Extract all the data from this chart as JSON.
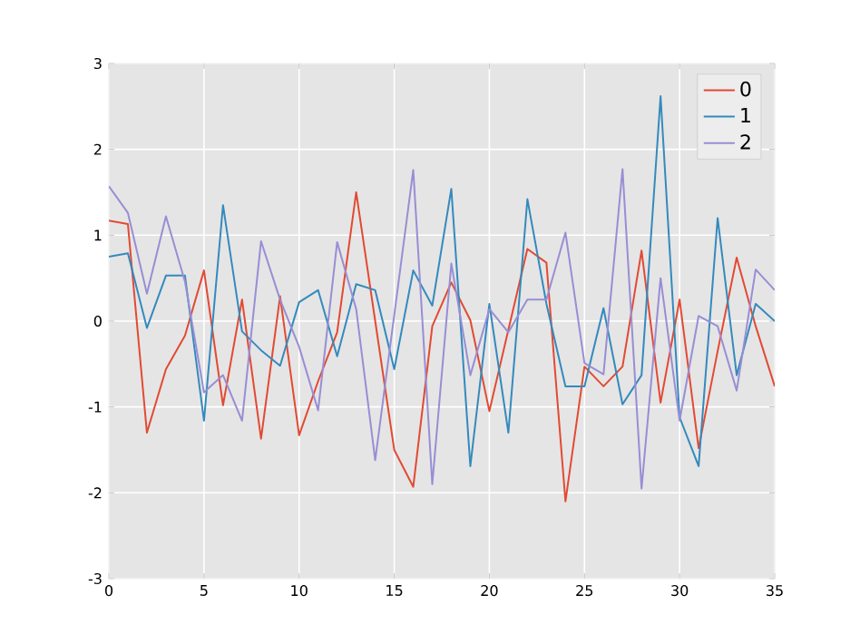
{
  "chart_data": {
    "type": "line",
    "x": [
      0,
      1,
      2,
      3,
      4,
      5,
      6,
      7,
      8,
      9,
      10,
      11,
      12,
      13,
      14,
      15,
      16,
      17,
      18,
      19,
      20,
      21,
      22,
      23,
      24,
      25,
      26,
      27,
      28,
      29,
      30,
      31,
      32,
      33,
      34,
      35
    ],
    "series": [
      {
        "name": "0",
        "color": "#e24a33",
        "values": [
          1.17,
          1.13,
          -1.3,
          -0.56,
          -0.17,
          0.59,
          -0.98,
          0.25,
          -1.37,
          0.29,
          -1.33,
          -0.7,
          -0.13,
          1.5,
          0.0,
          -1.5,
          -1.93,
          -0.06,
          0.45,
          0.01,
          -1.05,
          -0.1,
          0.84,
          0.68,
          -2.1,
          -0.53,
          -0.76,
          -0.53,
          0.82,
          -0.95,
          0.25,
          -1.48,
          -0.35,
          0.74,
          -0.06,
          -0.76
        ]
      },
      {
        "name": "1",
        "color": "#348abd",
        "values": [
          0.75,
          0.79,
          -0.08,
          0.53,
          0.53,
          -1.16,
          1.35,
          -0.12,
          -0.34,
          -0.52,
          0.22,
          0.36,
          -0.41,
          0.43,
          0.36,
          -0.56,
          0.59,
          0.18,
          1.54,
          -1.69,
          0.2,
          -1.3,
          1.42,
          0.2,
          -0.76,
          -0.76,
          0.15,
          -0.97,
          -0.63,
          2.62,
          -1.12,
          -1.69,
          1.2,
          -0.63,
          0.2,
          0.0
        ]
      },
      {
        "name": "2",
        "color": "#988ed5",
        "values": [
          1.57,
          1.26,
          0.32,
          1.22,
          0.46,
          -0.83,
          -0.63,
          -1.16,
          0.93,
          0.25,
          -0.3,
          -1.04,
          0.92,
          0.14,
          -1.62,
          0.07,
          1.76,
          -1.9,
          0.67,
          -0.63,
          0.14,
          -0.13,
          0.25,
          0.25,
          1.03,
          -0.49,
          -0.62,
          1.77,
          -1.95,
          0.5,
          -1.16,
          0.06,
          -0.06,
          -0.81,
          0.6,
          0.36
        ]
      }
    ],
    "xlim": [
      0,
      35
    ],
    "xticks": [
      0,
      5,
      10,
      15,
      20,
      25,
      30,
      35
    ],
    "ylim": [
      -3,
      3
    ],
    "yticks": [
      -3,
      -2,
      -1,
      0,
      1,
      2,
      3
    ],
    "grid": true,
    "legend": "top right",
    "marker": "none",
    "line_style": "solid"
  }
}
